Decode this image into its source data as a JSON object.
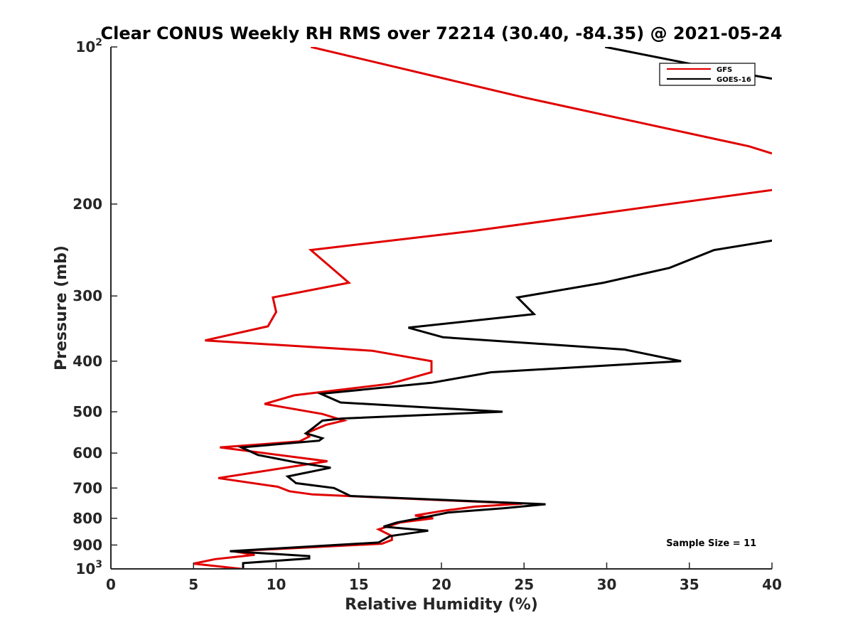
{
  "chart_data": {
    "type": "line",
    "title": "Clear CONUS Weekly RH RMS over 72214 (30.40, -84.35) @ 2021-05-24",
    "xlabel": "Relative Humidity (%)",
    "ylabel": "Pressure (mb)",
    "xlim": [
      0,
      40
    ],
    "ylim": [
      100,
      1000
    ],
    "yscale": "log",
    "y_reversed": true,
    "x_ticks": [
      0,
      5,
      10,
      15,
      20,
      25,
      30,
      35,
      40
    ],
    "y_ticks": [
      {
        "value": 100,
        "label": "10",
        "sup": "2"
      },
      {
        "value": 200,
        "label": "200"
      },
      {
        "value": 300,
        "label": "300"
      },
      {
        "value": 400,
        "label": "400"
      },
      {
        "value": 500,
        "label": "500"
      },
      {
        "value": 600,
        "label": "600"
      },
      {
        "value": 700,
        "label": "700"
      },
      {
        "value": 800,
        "label": "800"
      },
      {
        "value": 900,
        "label": "900"
      },
      {
        "value": 1000,
        "label": "10",
        "sup": "3"
      }
    ],
    "grid": false,
    "legend_position": "top-right",
    "series": [
      {
        "name": "GFS",
        "color": "#e00000",
        "points": [
          [
            12.1,
            100
          ],
          [
            25.0,
            125
          ],
          [
            38.6,
            155
          ],
          [
            40.0,
            160
          ],
          [
            null,
            null
          ],
          [
            40.0,
            188
          ],
          [
            22.0,
            225
          ],
          [
            12.1,
            245
          ],
          [
            14.4,
            283
          ],
          [
            9.8,
            302
          ],
          [
            10.0,
            322
          ],
          [
            9.5,
            343
          ],
          [
            5.7,
            365
          ],
          [
            15.8,
            382
          ],
          [
            19.4,
            400
          ],
          [
            19.4,
            420
          ],
          [
            16.9,
            442
          ],
          [
            11.1,
            465
          ],
          [
            9.3,
            483
          ],
          [
            12.8,
            505
          ],
          [
            14.1,
            520
          ],
          [
            13.0,
            530
          ],
          [
            11.8,
            550
          ],
          [
            12.0,
            558
          ],
          [
            11.4,
            570
          ],
          [
            6.6,
            585
          ],
          [
            13.1,
            622
          ],
          [
            8.5,
            655
          ],
          [
            6.5,
            670
          ],
          [
            10.1,
            696
          ],
          [
            10.8,
            710
          ],
          [
            12.2,
            720
          ],
          [
            24.9,
            750
          ],
          [
            22.0,
            760
          ],
          [
            20.0,
            775
          ],
          [
            18.4,
            790
          ],
          [
            19.5,
            800
          ],
          [
            17.5,
            815
          ],
          [
            16.2,
            840
          ],
          [
            17.0,
            865
          ],
          [
            17.0,
            880
          ],
          [
            16.4,
            895
          ],
          [
            7.4,
            925
          ],
          [
            8.7,
            940
          ],
          [
            6.3,
            958
          ],
          [
            5.0,
            977
          ],
          [
            7.9,
            1000
          ]
        ]
      },
      {
        "name": "GOES-16",
        "color": "#000000",
        "points": [
          [
            29.9,
            100
          ],
          [
            36.5,
            110
          ],
          [
            40.0,
            115
          ],
          [
            null,
            null
          ],
          [
            40.0,
            235
          ],
          [
            36.5,
            245
          ],
          [
            33.8,
            265
          ],
          [
            29.8,
            283
          ],
          [
            24.6,
            302
          ],
          [
            25.6,
            325
          ],
          [
            18.0,
            345
          ],
          [
            20.1,
            360
          ],
          [
            31.1,
            380
          ],
          [
            34.5,
            400
          ],
          [
            23.0,
            420
          ],
          [
            19.4,
            440
          ],
          [
            12.7,
            462
          ],
          [
            13.9,
            480
          ],
          [
            23.7,
            500
          ],
          [
            14.0,
            515
          ],
          [
            12.8,
            520
          ],
          [
            12.3,
            535
          ],
          [
            11.8,
            550
          ],
          [
            12.8,
            562
          ],
          [
            12.6,
            568
          ],
          [
            7.9,
            585
          ],
          [
            8.9,
            605
          ],
          [
            11.2,
            625
          ],
          [
            13.3,
            640
          ],
          [
            10.7,
            665
          ],
          [
            11.2,
            685
          ],
          [
            13.5,
            700
          ],
          [
            14.5,
            725
          ],
          [
            26.3,
            752
          ],
          [
            23.8,
            765
          ],
          [
            20.4,
            780
          ],
          [
            19.1,
            795
          ],
          [
            17.3,
            815
          ],
          [
            16.5,
            830
          ],
          [
            19.2,
            845
          ],
          [
            16.9,
            865
          ],
          [
            16.2,
            890
          ],
          [
            7.2,
            925
          ],
          [
            12.0,
            945
          ],
          [
            12.0,
            955
          ],
          [
            8.0,
            975
          ],
          [
            8.0,
            1000
          ]
        ]
      }
    ],
    "annotations": [
      {
        "text": "Sample Size = 11",
        "x": 33.6,
        "y": 910
      }
    ]
  }
}
